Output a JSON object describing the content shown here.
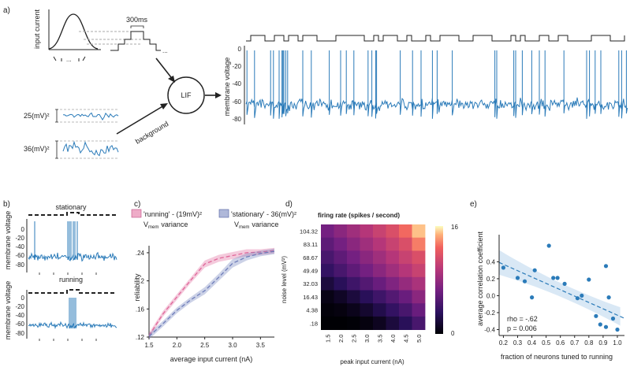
{
  "panel_labels": {
    "a": "a)",
    "b": "b)",
    "c": "c)",
    "d": "d)",
    "e": "e)"
  },
  "panel_a": {
    "input_current_label": "input current",
    "duration_label": "300ms",
    "ellipsis": "...",
    "lif_label": "LIF",
    "background_label": "background",
    "noise_25": "25(mV)²",
    "noise_36": "36(mV)²",
    "ylabel": "membrane voltage",
    "yticks": [
      "0",
      "-20",
      "-40",
      "-60",
      "-80"
    ],
    "trace_color": "#2b7bb9"
  },
  "panel_b": {
    "stationary_title": "stationary",
    "running_title": "running",
    "ylabel": "membrane voltage",
    "yticks": [
      "0",
      "-20",
      "-40",
      "-60",
      "-80"
    ]
  },
  "chart_data": [
    {
      "type": "line",
      "panel": "c",
      "xlabel": "average input current (nA)",
      "ylabel": "reliability",
      "xticks": [
        1.5,
        2.0,
        2.5,
        3.0,
        3.5
      ],
      "yticks": [
        0.12,
        0.16,
        0.2,
        0.24
      ],
      "ytick_labels": [
        ".12",
        ".16",
        ".2",
        ".24"
      ],
      "xlim": [
        1.5,
        3.75
      ],
      "ylim": [
        0.12,
        0.25
      ],
      "legend": [
        {
          "line1": "'running' - (19mV)²",
          "line2": "variance",
          "vmem": "V",
          "vmem_sub": "mem",
          "color": "#e0679a"
        },
        {
          "line1": "'stationary' - 36(mV)²",
          "line2": "variance",
          "vmem": "V",
          "vmem_sub": "mem",
          "color": "#6e7dba"
        }
      ],
      "series": [
        {
          "color": "#e0679a",
          "x": [
            1.5,
            1.75,
            2.0,
            2.25,
            2.5,
            2.75,
            3.0,
            3.25,
            3.5,
            3.75
          ],
          "values": [
            0.122,
            0.153,
            0.177,
            0.201,
            0.224,
            0.232,
            0.236,
            0.24,
            0.241,
            0.243
          ],
          "band": [
            0.004,
            0.004,
            0.004,
            0.004,
            0.005,
            0.005,
            0.005,
            0.005,
            0.004,
            0.004
          ]
        },
        {
          "color": "#6e7dba",
          "x": [
            1.5,
            1.75,
            2.0,
            2.25,
            2.5,
            2.75,
            3.0,
            3.25,
            3.5,
            3.75
          ],
          "values": [
            0.121,
            0.139,
            0.158,
            0.173,
            0.186,
            0.205,
            0.225,
            0.234,
            0.239,
            0.242
          ],
          "band": [
            0.004,
            0.004,
            0.004,
            0.004,
            0.005,
            0.005,
            0.006,
            0.005,
            0.004,
            0.004
          ]
        }
      ]
    },
    {
      "type": "heatmap",
      "panel": "d",
      "title": "firing rate (spikes / second)",
      "xlabel": "peak input current (nA)",
      "ylabel": "noise level (mV²)",
      "x_categories": [
        "1.5",
        "2.0",
        "2.5",
        "3.0",
        "3.5",
        "4.0",
        "4.5",
        "5.0"
      ],
      "y_categories": [
        "104.32",
        "83.11",
        "68.67",
        "49.49",
        "32.03",
        "16.43",
        "4.38",
        ".18"
      ],
      "colorbar": {
        "min": 0,
        "max": 16,
        "labels": [
          "16",
          "0"
        ]
      },
      "values": [
        [
          6.5,
          7.5,
          8.5,
          9.5,
          10.5,
          11.5,
          13.0,
          15.0
        ],
        [
          5.5,
          6.5,
          7.5,
          8.5,
          9.5,
          10.5,
          11.5,
          13.5
        ],
        [
          4.5,
          5.5,
          6.5,
          7.5,
          8.5,
          9.5,
          10.5,
          11.5
        ],
        [
          3.5,
          4.5,
          5.5,
          6.5,
          7.5,
          8.5,
          9.5,
          10.5
        ],
        [
          2.0,
          3.0,
          4.0,
          5.0,
          6.0,
          7.0,
          8.0,
          9.0
        ],
        [
          0.6,
          1.2,
          2.0,
          3.0,
          4.0,
          5.0,
          6.0,
          7.5
        ],
        [
          0.2,
          0.4,
          0.8,
          1.5,
          2.5,
          3.5,
          4.5,
          6.0
        ],
        [
          0.0,
          0.0,
          0.1,
          0.4,
          1.0,
          2.0,
          3.0,
          4.5
        ]
      ]
    },
    {
      "type": "scatter",
      "panel": "e",
      "xlabel": "fraction of neurons tuned to running",
      "ylabel": "average correlation coefficient",
      "xticks": [
        0.2,
        0.3,
        0.4,
        0.5,
        0.6,
        0.7,
        0.8,
        0.9,
        1.0
      ],
      "yticks": [
        0.4,
        0.2,
        0.0,
        -0.2,
        -0.4
      ],
      "xlim": [
        0.17,
        1.05
      ],
      "ylim": [
        -0.47,
        0.72
      ],
      "annotation": [
        "rho = -.62",
        "p = 0.006"
      ],
      "points": [
        {
          "x": 0.2,
          "y": 0.33
        },
        {
          "x": 0.3,
          "y": 0.21
        },
        {
          "x": 0.35,
          "y": 0.17
        },
        {
          "x": 0.4,
          "y": -0.02
        },
        {
          "x": 0.42,
          "y": 0.3
        },
        {
          "x": 0.52,
          "y": 0.59
        },
        {
          "x": 0.55,
          "y": 0.21
        },
        {
          "x": 0.58,
          "y": 0.21
        },
        {
          "x": 0.63,
          "y": 0.14
        },
        {
          "x": 0.72,
          "y": -0.03
        },
        {
          "x": 0.75,
          "y": 0.0
        },
        {
          "x": 0.8,
          "y": 0.19
        },
        {
          "x": 0.85,
          "y": -0.24
        },
        {
          "x": 0.88,
          "y": -0.34
        },
        {
          "x": 0.92,
          "y": 0.35
        },
        {
          "x": 0.92,
          "y": -0.37
        },
        {
          "x": 0.94,
          "y": -0.02
        },
        {
          "x": 0.97,
          "y": -0.27
        },
        {
          "x": 1.0,
          "y": -0.4
        }
      ],
      "fit": {
        "slope": -0.75,
        "intercept": 0.52,
        "color": "#2b7bb9",
        "band_color": "#cfe2f3"
      }
    }
  ]
}
